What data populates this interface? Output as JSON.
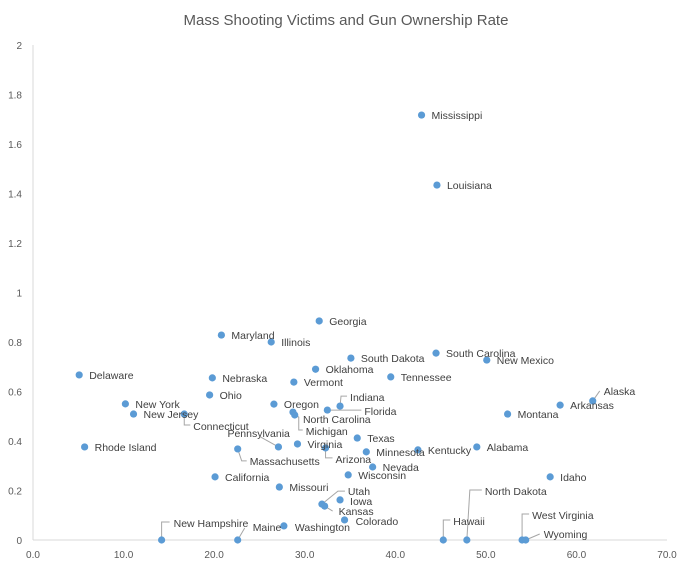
{
  "chart_data": {
    "type": "scatter",
    "title": "Mass Shooting Victims and Gun Ownership Rate",
    "xlabel": "",
    "ylabel": "",
    "xlim": [
      0,
      70
    ],
    "ylim": [
      0,
      2
    ],
    "x_ticks": [
      "0.0",
      "10.0",
      "20.0",
      "30.0",
      "40.0",
      "50.0",
      "60.0",
      "70.0"
    ],
    "y_ticks": [
      "0",
      "0.2",
      "0.4",
      "0.6",
      "0.8",
      "1",
      "1.2",
      "1.4",
      "1.6",
      "1.8",
      "2"
    ],
    "grid": false,
    "marker_color": "#5B9BD5",
    "points": [
      {
        "label": "Mississippi",
        "x": 42.9,
        "y": 1.717
      },
      {
        "label": "Louisiana",
        "x": 44.6,
        "y": 1.434
      },
      {
        "label": "Georgia",
        "x": 31.6,
        "y": 0.885
      },
      {
        "label": "Maryland",
        "x": 20.8,
        "y": 0.828
      },
      {
        "label": "Illinois",
        "x": 26.3,
        "y": 0.8
      },
      {
        "label": "South Dakota",
        "x": 35.1,
        "y": 0.735
      },
      {
        "label": "Oklahoma",
        "x": 31.2,
        "y": 0.69
      },
      {
        "label": "South Carolina",
        "x": 44.5,
        "y": 0.755
      },
      {
        "label": "New Mexico",
        "x": 50.1,
        "y": 0.727
      },
      {
        "label": "Delaware",
        "x": 5.1,
        "y": 0.667
      },
      {
        "label": "Nebraska",
        "x": 19.8,
        "y": 0.655
      },
      {
        "label": "Vermont",
        "x": 28.8,
        "y": 0.638
      },
      {
        "label": "Tennessee",
        "x": 39.5,
        "y": 0.659
      },
      {
        "label": "Ohio",
        "x": 19.5,
        "y": 0.586
      },
      {
        "label": "Alaska",
        "x": 61.8,
        "y": 0.562
      },
      {
        "label": "Arkansas",
        "x": 58.2,
        "y": 0.545
      },
      {
        "label": "New York",
        "x": 10.2,
        "y": 0.55
      },
      {
        "label": "New Jersey",
        "x": 11.1,
        "y": 0.509
      },
      {
        "label": "Connecticut",
        "x": 16.7,
        "y": 0.509
      },
      {
        "label": "Oregon",
        "x": 26.6,
        "y": 0.549
      },
      {
        "label": "North Carolina",
        "x": 28.7,
        "y": 0.517
      },
      {
        "label": "Michigan",
        "x": 28.9,
        "y": 0.505
      },
      {
        "label": "Indiana",
        "x": 33.9,
        "y": 0.541
      },
      {
        "label": "Florida",
        "x": 32.5,
        "y": 0.525
      },
      {
        "label": "Montana",
        "x": 52.4,
        "y": 0.509
      },
      {
        "label": "Rhode Island",
        "x": 5.7,
        "y": 0.376
      },
      {
        "label": "Pennsylvania",
        "x": 27.1,
        "y": 0.376
      },
      {
        "label": "Virginia",
        "x": 29.2,
        "y": 0.388
      },
      {
        "label": "Massachusetts",
        "x": 22.6,
        "y": 0.368
      },
      {
        "label": "Arizona",
        "x": 32.3,
        "y": 0.372
      },
      {
        "label": "Texas",
        "x": 35.8,
        "y": 0.412
      },
      {
        "label": "Minnesota",
        "x": 36.8,
        "y": 0.356
      },
      {
        "label": "Kentucky",
        "x": 42.5,
        "y": 0.364
      },
      {
        "label": "Alabama",
        "x": 49.0,
        "y": 0.376
      },
      {
        "label": "Nevada",
        "x": 37.5,
        "y": 0.295
      },
      {
        "label": "Wisconsin",
        "x": 34.8,
        "y": 0.263
      },
      {
        "label": "California",
        "x": 20.1,
        "y": 0.255
      },
      {
        "label": "Missouri",
        "x": 27.2,
        "y": 0.214
      },
      {
        "label": "Idaho",
        "x": 57.1,
        "y": 0.255
      },
      {
        "label": "Utah",
        "x": 31.9,
        "y": 0.145
      },
      {
        "label": "Iowa",
        "x": 33.9,
        "y": 0.162
      },
      {
        "label": "Kansas",
        "x": 32.2,
        "y": 0.137
      },
      {
        "label": "Colorado",
        "x": 34.4,
        "y": 0.081
      },
      {
        "label": "Washington",
        "x": 27.7,
        "y": 0.057
      },
      {
        "label": "New Hampshire",
        "x": 14.2,
        "y": 0
      },
      {
        "label": "Maine",
        "x": 22.6,
        "y": 0
      },
      {
        "label": "Hawaii",
        "x": 45.3,
        "y": 0
      },
      {
        "label": "North Dakota",
        "x": 47.9,
        "y": 0
      },
      {
        "label": "West Virginia",
        "x": 54.0,
        "y": 0
      },
      {
        "label": "Wyoming",
        "x": 54.4,
        "y": 0
      }
    ]
  }
}
